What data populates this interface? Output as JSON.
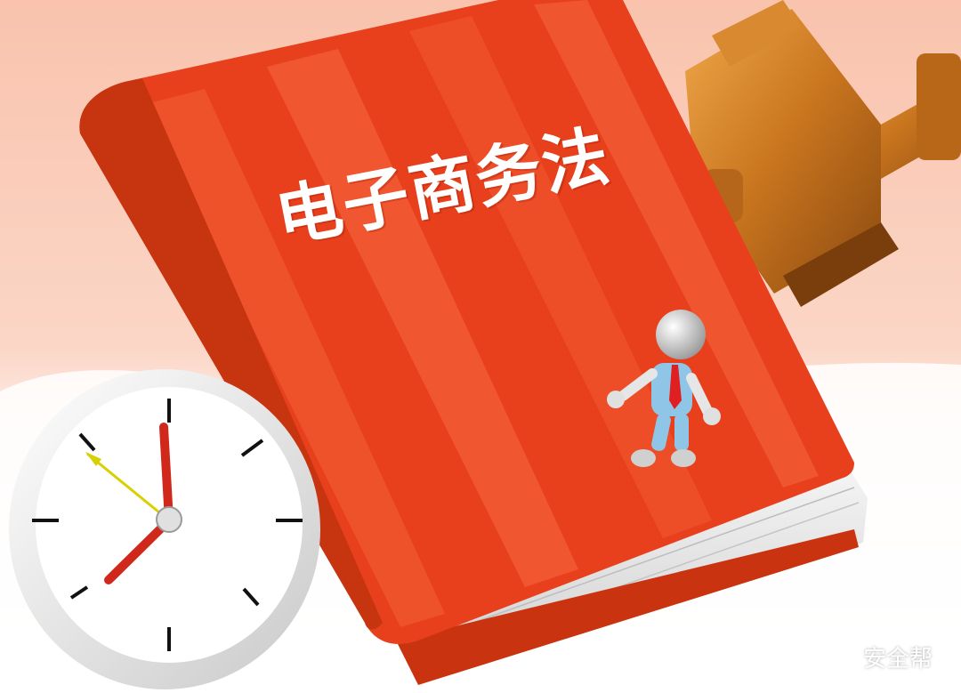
{
  "book": {
    "title": "电子商务法"
  },
  "watermark": {
    "text": "安全帮",
    "icon": "wechat-icon"
  },
  "colors": {
    "background": "#fbd3c0",
    "book_red": "#e8401c",
    "gavel_brown": "#c8741e",
    "clock_face": "#ffffff",
    "clock_hand_red": "#d0281a",
    "clock_second_hand": "#d8d000"
  }
}
